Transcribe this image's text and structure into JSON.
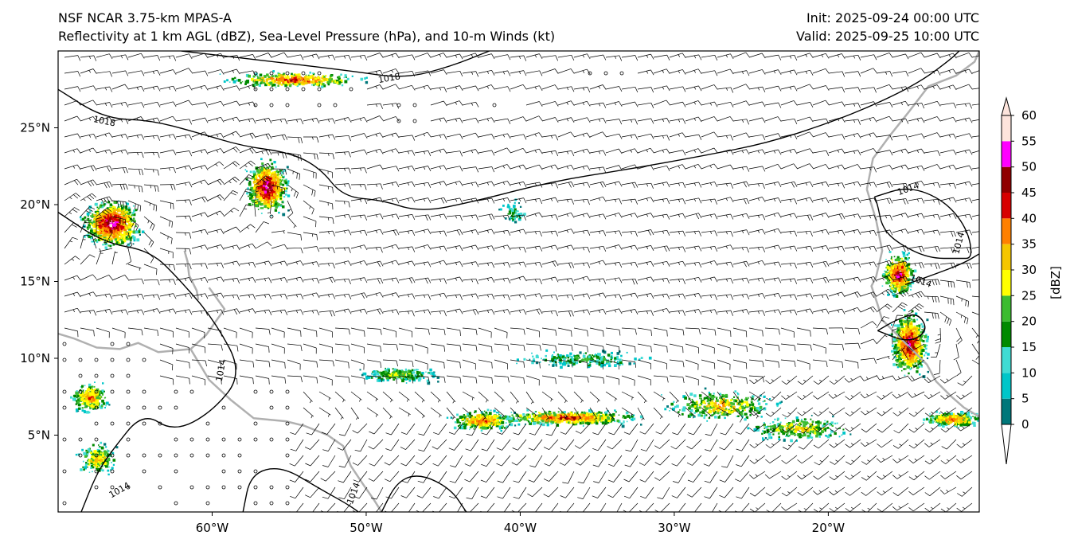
{
  "header": {
    "title_left_1": "NSF NCAR 3.75-km MPAS-A",
    "title_left_2": "Reflectivity at 1 km AGL (dBZ), Sea-Level Pressure (hPa), and 10-m Winds (kt)",
    "title_right_1": "Init: 2025-09-24 00:00 UTC",
    "title_right_2": "Valid: 2025-09-25 10:00 UTC"
  },
  "map": {
    "lon_range": [
      -70,
      -10.2
    ],
    "lat_range": [
      0,
      30
    ],
    "lon_ticks": [
      {
        "value": -60,
        "label": "60°W"
      },
      {
        "value": -50,
        "label": "50°W"
      },
      {
        "value": -40,
        "label": "40°W"
      },
      {
        "value": -30,
        "label": "30°W"
      },
      {
        "value": -20,
        "label": "20°W"
      }
    ],
    "lat_ticks": [
      {
        "value": 5,
        "label": "5°N"
      },
      {
        "value": 10,
        "label": "10°N"
      },
      {
        "value": 15,
        "label": "15°N"
      },
      {
        "value": 20,
        "label": "20°N"
      },
      {
        "value": 25,
        "label": "25°N"
      }
    ],
    "isobar_labels": [
      {
        "text": "1018",
        "lon": -67.0,
        "lat": 25.4,
        "rot": 12
      },
      {
        "text": "1018",
        "lon": -48.5,
        "lat": 28.2,
        "rot": -10
      },
      {
        "text": "1014",
        "lon": -14.8,
        "lat": 21.0,
        "rot": -20
      },
      {
        "text": "1014",
        "lon": -11.5,
        "lat": 17.5,
        "rot": -75
      },
      {
        "text": "1014",
        "lon": -14.0,
        "lat": 15.0,
        "rot": 20
      },
      {
        "text": "1014",
        "lon": -66.0,
        "lat": 1.4,
        "rot": -30
      },
      {
        "text": "1014",
        "lon": -59.4,
        "lat": 9.2,
        "rot": -80
      },
      {
        "text": "1014",
        "lon": -50.8,
        "lat": 1.2,
        "rot": -70
      }
    ],
    "isobars": [
      {
        "value": 1018,
        "points": [
          [
            -70,
            27.5
          ],
          [
            -67,
            25.6
          ],
          [
            -64,
            25.5
          ],
          [
            -61,
            24.7
          ],
          [
            -58,
            23.8
          ],
          [
            -55,
            23.4
          ],
          [
            -53,
            22.4
          ],
          [
            -51.5,
            20.5
          ],
          [
            -49,
            20.3
          ],
          [
            -46.5,
            19.5
          ],
          [
            -43,
            20.2
          ],
          [
            -38,
            21.5
          ],
          [
            -33,
            22.3
          ],
          [
            -28,
            23.2
          ],
          [
            -24,
            24.0
          ],
          [
            -20,
            25.3
          ],
          [
            -17,
            26.5
          ],
          [
            -14,
            28.0
          ],
          [
            -12,
            29.5
          ],
          [
            -11.5,
            30
          ]
        ]
      },
      {
        "value": 1018,
        "points": [
          [
            -62,
            30
          ],
          [
            -56,
            29.3
          ],
          [
            -51,
            28.7
          ],
          [
            -47.5,
            28.2
          ],
          [
            -44.5,
            29.0
          ],
          [
            -42,
            30
          ]
        ]
      },
      {
        "value": 1014,
        "points": [
          [
            -70,
            19.5
          ],
          [
            -67,
            17.5
          ],
          [
            -64,
            17.0
          ],
          [
            -62,
            15.0
          ],
          [
            -59.8,
            12.4
          ],
          [
            -58,
            9.0
          ],
          [
            -60,
            6.5
          ],
          [
            -62.5,
            5.2
          ],
          [
            -64.5,
            6.5
          ],
          [
            -66.5,
            4.0
          ],
          [
            -67.5,
            2.5
          ],
          [
            -68.5,
            0
          ]
        ]
      },
      {
        "value": 1014,
        "points": [
          [
            -58,
            0
          ],
          [
            -57.5,
            2.5
          ],
          [
            -55.5,
            3.0
          ],
          [
            -53,
            1.5
          ],
          [
            -51.2,
            0.5
          ],
          [
            -50.5,
            0
          ]
        ]
      },
      {
        "value": 1014,
        "points": [
          [
            -49,
            0
          ],
          [
            -48,
            2.0
          ],
          [
            -46.5,
            2.5
          ],
          [
            -44.5,
            1.5
          ],
          [
            -43.5,
            0
          ]
        ]
      },
      {
        "value": 1014,
        "points": [
          [
            -17,
            20.5
          ],
          [
            -14.8,
            21.2
          ],
          [
            -12.5,
            20.3
          ],
          [
            -11.0,
            18.5
          ],
          [
            -10.6,
            16.5
          ],
          [
            -11.5,
            16.5
          ],
          [
            -13.5,
            16.5
          ],
          [
            -15.5,
            17.5
          ],
          [
            -16.5,
            18.5
          ],
          [
            -16.8,
            20.0
          ],
          [
            -17,
            20.5
          ]
        ]
      },
      {
        "value": 1014,
        "points": [
          [
            -15,
            14.8
          ],
          [
            -13,
            15.5
          ],
          [
            -11.2,
            16.2
          ],
          [
            -10.2,
            16.8
          ]
        ]
      },
      {
        "value": 1014,
        "points": [
          [
            -16.8,
            11.8
          ],
          [
            -14.8,
            11.0
          ],
          [
            -13.5,
            11.8
          ],
          [
            -14.2,
            13.0
          ],
          [
            -15.6,
            12.5
          ],
          [
            -16.8,
            11.8
          ]
        ]
      }
    ],
    "coastlines": [
      [
        [
          -60.2,
          14.6
        ],
        [
          -59.2,
          13.2
        ],
        [
          -60.4,
          11.5
        ],
        [
          -61.4,
          10.6
        ],
        [
          -63.5,
          10.4
        ],
        [
          -64.8,
          11.0
        ],
        [
          -66,
          10.6
        ],
        [
          -67.5,
          10.7
        ],
        [
          -69,
          11.3
        ],
        [
          -70,
          11.6
        ]
      ],
      [
        [
          -61.4,
          10.6
        ],
        [
          -60.2,
          8.6
        ],
        [
          -58.8,
          7.3
        ],
        [
          -57.3,
          6.1
        ],
        [
          -55.2,
          5.9
        ],
        [
          -54,
          5.6
        ],
        [
          -52.5,
          5.0
        ],
        [
          -51.5,
          4.3
        ],
        [
          -51,
          3.0
        ],
        [
          -50.2,
          1.8
        ],
        [
          -49.5,
          0.8
        ],
        [
          -49.0,
          0
        ]
      ],
      [
        [
          -17.5,
          21.0
        ],
        [
          -16.9,
          19.0
        ],
        [
          -16.5,
          17.0
        ],
        [
          -16.9,
          15.3
        ],
        [
          -17.2,
          14.7
        ],
        [
          -16.8,
          13.5
        ],
        [
          -16.5,
          12.5
        ],
        [
          -15.5,
          11.5
        ],
        [
          -14.5,
          10.5
        ],
        [
          -13.6,
          9.6
        ],
        [
          -13.0,
          8.5
        ],
        [
          -12.0,
          7.5
        ],
        [
          -11.2,
          6.8
        ],
        [
          -10.2,
          6.2
        ]
      ],
      [
        [
          -17.5,
          21.0
        ],
        [
          -17.1,
          23.0
        ],
        [
          -16.0,
          24.5
        ],
        [
          -14.8,
          26.0
        ],
        [
          -13.5,
          27.7
        ],
        [
          -11.7,
          28.4
        ],
        [
          -10.5,
          29.3
        ],
        [
          -10.2,
          30
        ]
      ],
      [
        [
          -61.8,
          17.0
        ],
        [
          -61.6,
          16.3
        ],
        [
          -61.5,
          15.4
        ],
        [
          -61.0,
          14.4
        ],
        [
          -60.9,
          13.8
        ]
      ]
    ],
    "wind": {
      "spacing_px": 20,
      "calm_regions": [
        [
          -58,
          -50,
          26,
          29
        ],
        [
          -48.5,
          -46,
          25,
          27.2
        ],
        [
          -43,
          -40,
          25.5,
          26.6
        ],
        [
          -36,
          -33,
          28,
          29
        ],
        [
          -64,
          -55,
          0.5,
          8
        ],
        [
          -70,
          -64,
          0.5,
          11
        ]
      ],
      "circulations": [
        {
          "lon": -66.8,
          "lat": 18.8,
          "strength": 1.0
        },
        {
          "lon": -56.5,
          "lat": 21.0,
          "strength": 0.8
        },
        {
          "lon": -14.0,
          "lat": 12.5,
          "strength": 0.9
        }
      ]
    },
    "reflectivity_cells": [
      {
        "lon": -66.6,
        "lat": 18.8,
        "rlon": 2.2,
        "rlat": 1.8,
        "count": 900,
        "peak": 55
      },
      {
        "lon": -56.5,
        "lat": 21.2,
        "rlon": 1.6,
        "rlat": 2.0,
        "count": 700,
        "peak": 55
      },
      {
        "lon": -15.5,
        "lat": 15.5,
        "rlon": 1.2,
        "rlat": 1.8,
        "count": 500,
        "peak": 50
      },
      {
        "lon": -14.8,
        "lat": 11.0,
        "rlon": 1.4,
        "rlat": 2.4,
        "count": 750,
        "peak": 52
      },
      {
        "lon": -12.0,
        "lat": 6.1,
        "rlon": 2.2,
        "rlat": 0.6,
        "count": 350,
        "peak": 42
      },
      {
        "lon": -68.0,
        "lat": 7.5,
        "rlon": 1.5,
        "rlat": 1.2,
        "count": 280,
        "peak": 40
      },
      {
        "lon": -67.5,
        "lat": 3.5,
        "rlon": 1.5,
        "rlat": 1.2,
        "count": 220,
        "peak": 35
      },
      {
        "lon": -54.8,
        "lat": 28.2,
        "rlon": 5.5,
        "rlat": 0.6,
        "count": 380,
        "peak": 45
      },
      {
        "lon": -37.0,
        "lat": 6.2,
        "rlon": 5.5,
        "rlat": 0.6,
        "count": 600,
        "peak": 45
      },
      {
        "lon": -42.5,
        "lat": 6.0,
        "rlon": 2.5,
        "rlat": 0.8,
        "count": 350,
        "peak": 42
      },
      {
        "lon": -27.0,
        "lat": 7.0,
        "rlon": 4.5,
        "rlat": 1.2,
        "count": 350,
        "peak": 35
      },
      {
        "lon": -48.0,
        "lat": 9.0,
        "rlon": 3.0,
        "rlat": 0.6,
        "count": 220,
        "peak": 28
      },
      {
        "lon": -36.0,
        "lat": 10.0,
        "rlon": 5.0,
        "rlat": 0.7,
        "count": 220,
        "peak": 22
      },
      {
        "lon": -22.0,
        "lat": 5.5,
        "rlon": 4.0,
        "rlat": 1.0,
        "count": 300,
        "peak": 32
      },
      {
        "lon": -40.5,
        "lat": 19.5,
        "rlon": 1.0,
        "rlat": 1.0,
        "count": 60,
        "peak": 20
      }
    ]
  },
  "colorbar": {
    "label": "[dBZ]",
    "ticks": [
      "0",
      "5",
      "10",
      "15",
      "20",
      "25",
      "30",
      "35",
      "40",
      "45",
      "50",
      "55",
      "60"
    ],
    "colors": [
      "#00777a",
      "#00c6c9",
      "#40dcd4",
      "#008a00",
      "#3cbc30",
      "#ffff00",
      "#f5c600",
      "#ff8000",
      "#d70000",
      "#900000",
      "#ff00ff",
      "#fde4dc"
    ],
    "under_color": "#ffffff",
    "over_color": "#fde4dc"
  },
  "colors": {
    "isobar": "#000000",
    "coastline": "#b0b0b0",
    "wind_barb": "#000000"
  }
}
